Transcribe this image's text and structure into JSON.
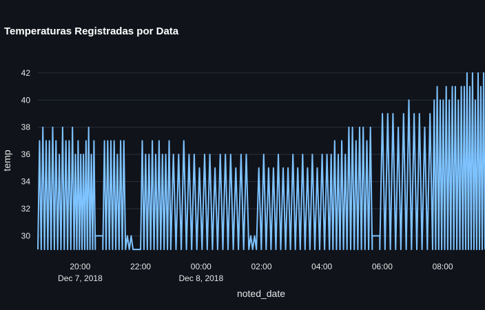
{
  "chart_data": {
    "type": "line",
    "title": "Temperaturas Registradas por Data",
    "xlabel": "noted_date",
    "ylabel": "temp",
    "ylim": [
      28.8,
      42.4
    ],
    "xlim": [
      "2018-12-07T18:36",
      "2018-12-08T09:24"
    ],
    "y_ticks": [
      30,
      32,
      34,
      36,
      38,
      40,
      42
    ],
    "x_ticks": [
      {
        "t": "2018-12-07T20:00",
        "label": "20:00",
        "sublabel": "Dec 7, 2018"
      },
      {
        "t": "2018-12-07T22:00",
        "label": "22:00",
        "sublabel": ""
      },
      {
        "t": "2018-12-08T00:00",
        "label": "00:00",
        "sublabel": "Dec 8, 2018"
      },
      {
        "t": "2018-12-08T02:00",
        "label": "02:00",
        "sublabel": ""
      },
      {
        "t": "2018-12-08T04:00",
        "label": "04:00",
        "sublabel": ""
      },
      {
        "t": "2018-12-08T06:00",
        "label": "06:00",
        "sublabel": ""
      },
      {
        "t": "2018-12-08T08:00",
        "label": "08:00",
        "sublabel": ""
      }
    ],
    "grid": true,
    "line_color": "#7ec3ff",
    "background": "#10131a",
    "series": [
      {
        "segments": [
          {
            "start": "2018-12-07T18:36",
            "end": "2018-12-07T19:48",
            "low": 29,
            "high": [
              37,
              38,
              37,
              37,
              38,
              37,
              36,
              38,
              37,
              37,
              38
            ]
          },
          {
            "start": "2018-12-07T19:48",
            "end": "2018-12-07T20:30",
            "low": 29,
            "high": [
              36,
              37,
              36,
              36,
              37,
              38,
              36,
              37
            ]
          },
          {
            "start": "2018-12-07T20:30",
            "end": "2018-12-07T20:45",
            "low": 30,
            "high": [
              30,
              30
            ]
          },
          {
            "start": "2018-12-07T20:45",
            "end": "2018-12-07T21:30",
            "low": 29,
            "high": [
              37,
              37,
              37,
              37,
              36,
              37,
              37
            ]
          },
          {
            "start": "2018-12-07T21:30",
            "end": "2018-12-07T21:45",
            "low": 29,
            "high": [
              30,
              30
            ]
          },
          {
            "start": "2018-12-07T22:00",
            "end": "2018-12-07T23:00",
            "low": 29,
            "high": [
              37,
              36,
              36,
              37,
              36,
              37,
              36,
              36,
              37
            ]
          },
          {
            "start": "2018-12-07T23:00",
            "end": "2018-12-08T01:35",
            "low": 29,
            "high": [
              36,
              36,
              37,
              36,
              36,
              35,
              36,
              36,
              35,
              36,
              36,
              36,
              35,
              36,
              36
            ]
          },
          {
            "start": "2018-12-08T01:35",
            "end": "2018-12-08T01:50",
            "low": 29,
            "high": [
              30,
              30
            ]
          },
          {
            "start": "2018-12-08T01:50",
            "end": "2018-12-08T04:15",
            "low": 29,
            "high": [
              35,
              36,
              35,
              35,
              36,
              35,
              35,
              36,
              35,
              36,
              35,
              36,
              35,
              36,
              36
            ]
          },
          {
            "start": "2018-12-08T04:15",
            "end": "2018-12-08T04:50",
            "low": 29,
            "high": [
              36,
              37,
              36,
              37,
              36
            ]
          },
          {
            "start": "2018-12-08T04:50",
            "end": "2018-12-08T05:40",
            "low": 29,
            "high": [
              38,
              38,
              37,
              38,
              38,
              37,
              38
            ]
          },
          {
            "start": "2018-12-08T05:40",
            "end": "2018-12-08T05:55",
            "low": 30,
            "high": [
              30,
              30
            ]
          },
          {
            "start": "2018-12-08T05:55",
            "end": "2018-12-08T07:40",
            "low": 29,
            "high": [
              39,
              39,
              39,
              38,
              39,
              40,
              39,
              39,
              38,
              39
            ]
          },
          {
            "start": "2018-12-08T07:40",
            "end": "2018-12-08T08:40",
            "low": 29,
            "high": [
              40,
              41,
              40,
              40,
              41,
              40,
              41,
              41,
              40,
              41
            ]
          },
          {
            "start": "2018-12-08T08:40",
            "end": "2018-12-08T09:24",
            "low": 29,
            "high": [
              41,
              42,
              41,
              42,
              40,
              42,
              41,
              42
            ]
          }
        ]
      }
    ]
  }
}
